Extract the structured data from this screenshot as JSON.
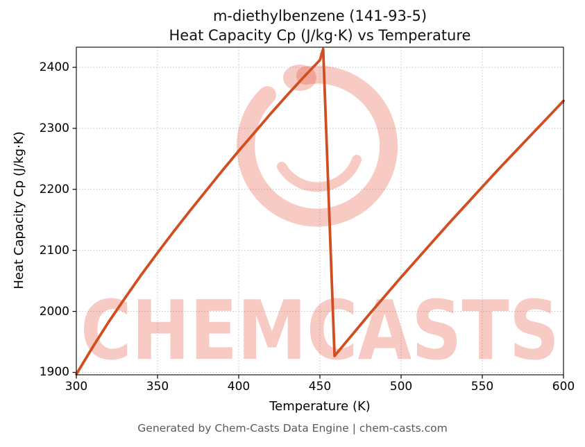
{
  "figure": {
    "title_line1": "m-diethylbenzene (141-93-5)",
    "title_line2": "Heat Capacity Cp (J/kg·K) vs Temperature",
    "footer": "Generated by Chem-Casts Data Engine | chem-casts.com",
    "watermark_text": "CHEMCASTS"
  },
  "chart_data": {
    "type": "line",
    "title": "m-diethylbenzene (141-93-5) — Heat Capacity Cp (J/kg·K) vs Temperature",
    "xlabel": "Temperature (K)",
    "ylabel": "Heat Capacity Cp (J/kg·K)",
    "xlim": [
      300,
      600
    ],
    "ylim": [
      1896,
      2433
    ],
    "x_ticks": [
      300,
      350,
      400,
      450,
      500,
      550,
      600
    ],
    "y_ticks": [
      1900,
      2000,
      2100,
      2200,
      2300,
      2400
    ],
    "grid": true,
    "legend": "none",
    "line_color": "#d14e21",
    "watermark_color": "rgba(225,62,38,0.27)",
    "series": [
      {
        "name": "Heat Capacity Cp",
        "x": [
          300,
          310,
          320,
          330,
          340,
          350,
          360,
          370,
          380,
          390,
          400,
          410,
          420,
          430,
          440,
          450,
          452,
          459,
          470,
          480,
          490,
          500,
          510,
          520,
          530,
          540,
          550,
          560,
          570,
          580,
          590,
          600
        ],
        "y": [
          1897,
          1941,
          1983,
          2022,
          2060,
          2096,
          2131,
          2165,
          2198,
          2231,
          2263,
          2294,
          2325,
          2355,
          2384,
          2412,
          2430,
          1927,
          1962,
          1994,
          2025,
          2056,
          2086,
          2116,
          2146,
          2175,
          2204,
          2233,
          2261,
          2289,
          2317,
          2345
        ]
      }
    ]
  }
}
